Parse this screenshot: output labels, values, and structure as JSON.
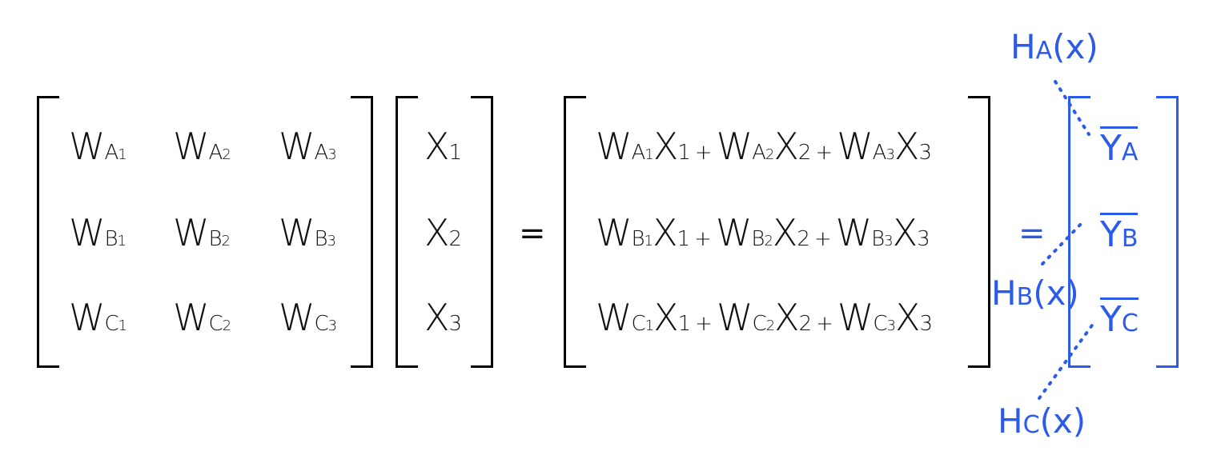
{
  "colors": {
    "ink": "#111111",
    "accent": "#2b5be8"
  },
  "matrix_w": {
    "rows": [
      [
        {
          "base": "W",
          "sub": "A",
          "idx": "1"
        },
        {
          "base": "W",
          "sub": "A",
          "idx": "2"
        },
        {
          "base": "W",
          "sub": "A",
          "idx": "3"
        }
      ],
      [
        {
          "base": "W",
          "sub": "B",
          "idx": "1"
        },
        {
          "base": "W",
          "sub": "B",
          "idx": "2"
        },
        {
          "base": "W",
          "sub": "B",
          "idx": "3"
        }
      ],
      [
        {
          "base": "W",
          "sub": "C",
          "idx": "1"
        },
        {
          "base": "W",
          "sub": "C",
          "idx": "2"
        },
        {
          "base": "W",
          "sub": "C",
          "idx": "3"
        }
      ]
    ]
  },
  "vector_x": [
    {
      "base": "X",
      "idx": "1"
    },
    {
      "base": "X",
      "idx": "2"
    },
    {
      "base": "X",
      "idx": "3"
    }
  ],
  "equals_1": "=",
  "equals_2": "=",
  "product": {
    "rows": [
      {
        "t1": {
          "w": "W",
          "s": "A",
          "i": "1",
          "x": "X",
          "xi": "1"
        },
        "op1": "+",
        "t2": {
          "w": "W",
          "s": "A",
          "i": "2",
          "x": "X",
          "xi": "2"
        },
        "op2": "+",
        "t3": {
          "w": "W",
          "s": "A",
          "i": "3",
          "x": "X",
          "xi": "3"
        }
      },
      {
        "t1": {
          "w": "W",
          "s": "B",
          "i": "1",
          "x": "X",
          "xi": "1"
        },
        "op1": "+",
        "t2": {
          "w": "W",
          "s": "B",
          "i": "2",
          "x": "X",
          "xi": "2"
        },
        "op2": "+",
        "t3": {
          "w": "W",
          "s": "B",
          "i": "3",
          "x": "X",
          "xi": "3"
        }
      },
      {
        "t1": {
          "w": "W",
          "s": "C",
          "i": "1",
          "x": "X",
          "xi": "1"
        },
        "op1": "+",
        "t2": {
          "w": "W",
          "s": "C",
          "i": "2",
          "x": "X",
          "xi": "2"
        },
        "op2": "+",
        "t3": {
          "w": "W",
          "s": "C",
          "i": "3",
          "x": "X",
          "xi": "3"
        }
      }
    ]
  },
  "result_y": [
    {
      "base": "Y",
      "sub": "A"
    },
    {
      "base": "Y",
      "sub": "B"
    },
    {
      "base": "Y",
      "sub": "C"
    }
  ],
  "h_labels": {
    "a": {
      "base": "H",
      "sub": "A",
      "arg": "(x)"
    },
    "b": {
      "base": "H",
      "sub": "B",
      "arg": "(x)"
    },
    "c": {
      "base": "H",
      "sub": "C",
      "arg": "(x)"
    }
  }
}
